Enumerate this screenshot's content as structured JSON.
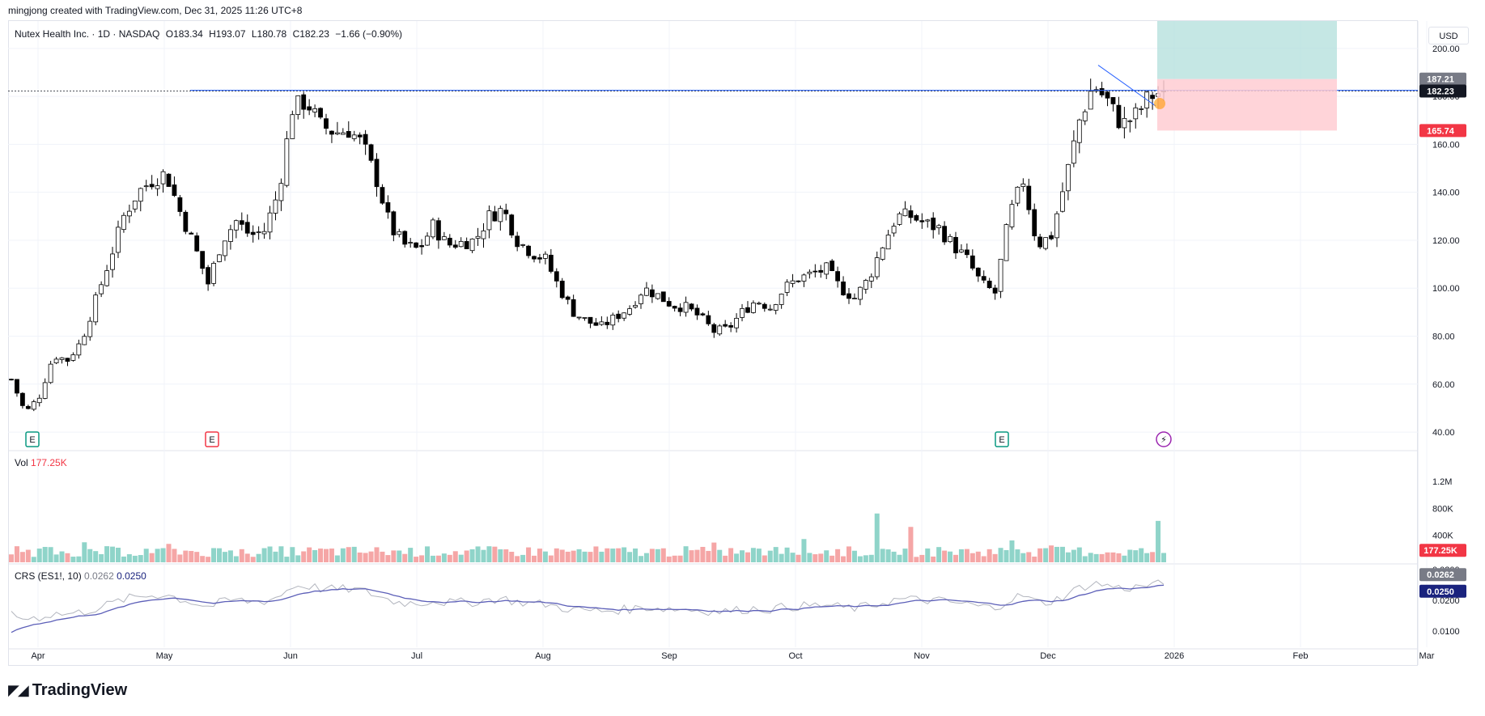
{
  "header": {
    "text": "mingjong created with TradingView.com, Dec 31, 2025 11:26 UTC+8"
  },
  "legend": {
    "symbol": "Nutex Health Inc. · 1D · NASDAQ",
    "open": "O183.34",
    "high": "H193.07",
    "low": "L180.78",
    "close": "C182.23",
    "change": "−1.66 (−0.90%)"
  },
  "currency": "USD",
  "volume_legend": {
    "label": "Vol",
    "value": "177.25K"
  },
  "crs_legend": {
    "label": "CRS (ES1!, 10)",
    "value1": "0.0262",
    "value2": "0.0250"
  },
  "footer": {
    "brand": "TradingView",
    "logo_icon": "tradingview-logo-icon"
  },
  "colors": {
    "up": "#26a69a",
    "down": "#ef5350",
    "candle_up": "#ffffff",
    "candle_down": "#000000",
    "vol_up": "#8fd4c9",
    "vol_down": "#f5a6a6",
    "crs_line": "#5c5fb8",
    "crs_raw": "#b2b5be",
    "target_zone": "#b2dfdb",
    "stop_zone": "#ffcdd2",
    "level_line": "#2962ff"
  },
  "chart_data": {
    "type": "candlestick",
    "y_ticks": [
      "200.00",
      "180.00",
      "160.00",
      "140.00",
      "120.00",
      "100.00",
      "80.00",
      "60.00",
      "40.00"
    ],
    "ylim": [
      38,
      205
    ],
    "x_ticks": [
      "Apr",
      "May",
      "Jun",
      "Jul",
      "Aug",
      "Sep",
      "Oct",
      "Nov",
      "Dec",
      "2026",
      "Feb",
      "Mar"
    ],
    "price_tags": [
      {
        "value": 187.21,
        "label": "187.21",
        "color": "#787b86"
      },
      {
        "value": 182.23,
        "label": "182.23",
        "color": "#131722"
      },
      {
        "value": 165.74,
        "label": "165.74",
        "color": "#f23645"
      }
    ],
    "horizontal_level": 182.5,
    "trade_box": {
      "entry": 187.21,
      "target_top": 210,
      "stop": 165.74
    },
    "trendline": {
      "from": 193.0,
      "to": 176.0
    },
    "events": [
      {
        "kind": "earnings",
        "label": "E",
        "color": "#089981"
      },
      {
        "kind": "earnings",
        "label": "E",
        "color": "#f23645"
      },
      {
        "kind": "earnings",
        "label": "E",
        "color": "#089981"
      },
      {
        "kind": "flash",
        "label": "⚡",
        "color": "#9c27b0"
      }
    ],
    "price_keypoints": [
      62,
      48,
      55,
      72,
      70,
      78,
      95,
      112,
      130,
      140,
      145,
      148,
      132,
      118,
      102,
      120,
      128,
      122,
      124,
      140,
      175,
      178,
      168,
      165,
      166,
      160,
      145,
      125,
      118,
      116,
      126,
      118,
      119,
      120,
      130,
      133,
      120,
      115,
      112,
      100,
      90,
      86,
      84,
      88,
      92,
      100,
      97,
      93,
      92,
      88,
      82,
      83,
      90,
      95,
      92,
      100,
      104,
      106,
      108,
      100,
      96,
      104,
      118,
      130,
      130,
      127,
      125,
      118,
      112,
      102,
      98,
      130,
      145,
      118,
      122,
      145,
      170,
      185,
      178,
      168,
      172,
      180,
      182.23
    ],
    "volume_axis": [
      "1.2M",
      "800K",
      "400K"
    ],
    "volume_ylim": [
      0,
      1500000
    ],
    "volume_last": "177.25K",
    "crs_axis": [
      "0.0300",
      "0.0200",
      "0.0100"
    ],
    "crs_ylim": [
      0.006,
      0.031
    ],
    "crs_tags": [
      "0.0262",
      "0.0250"
    ]
  }
}
